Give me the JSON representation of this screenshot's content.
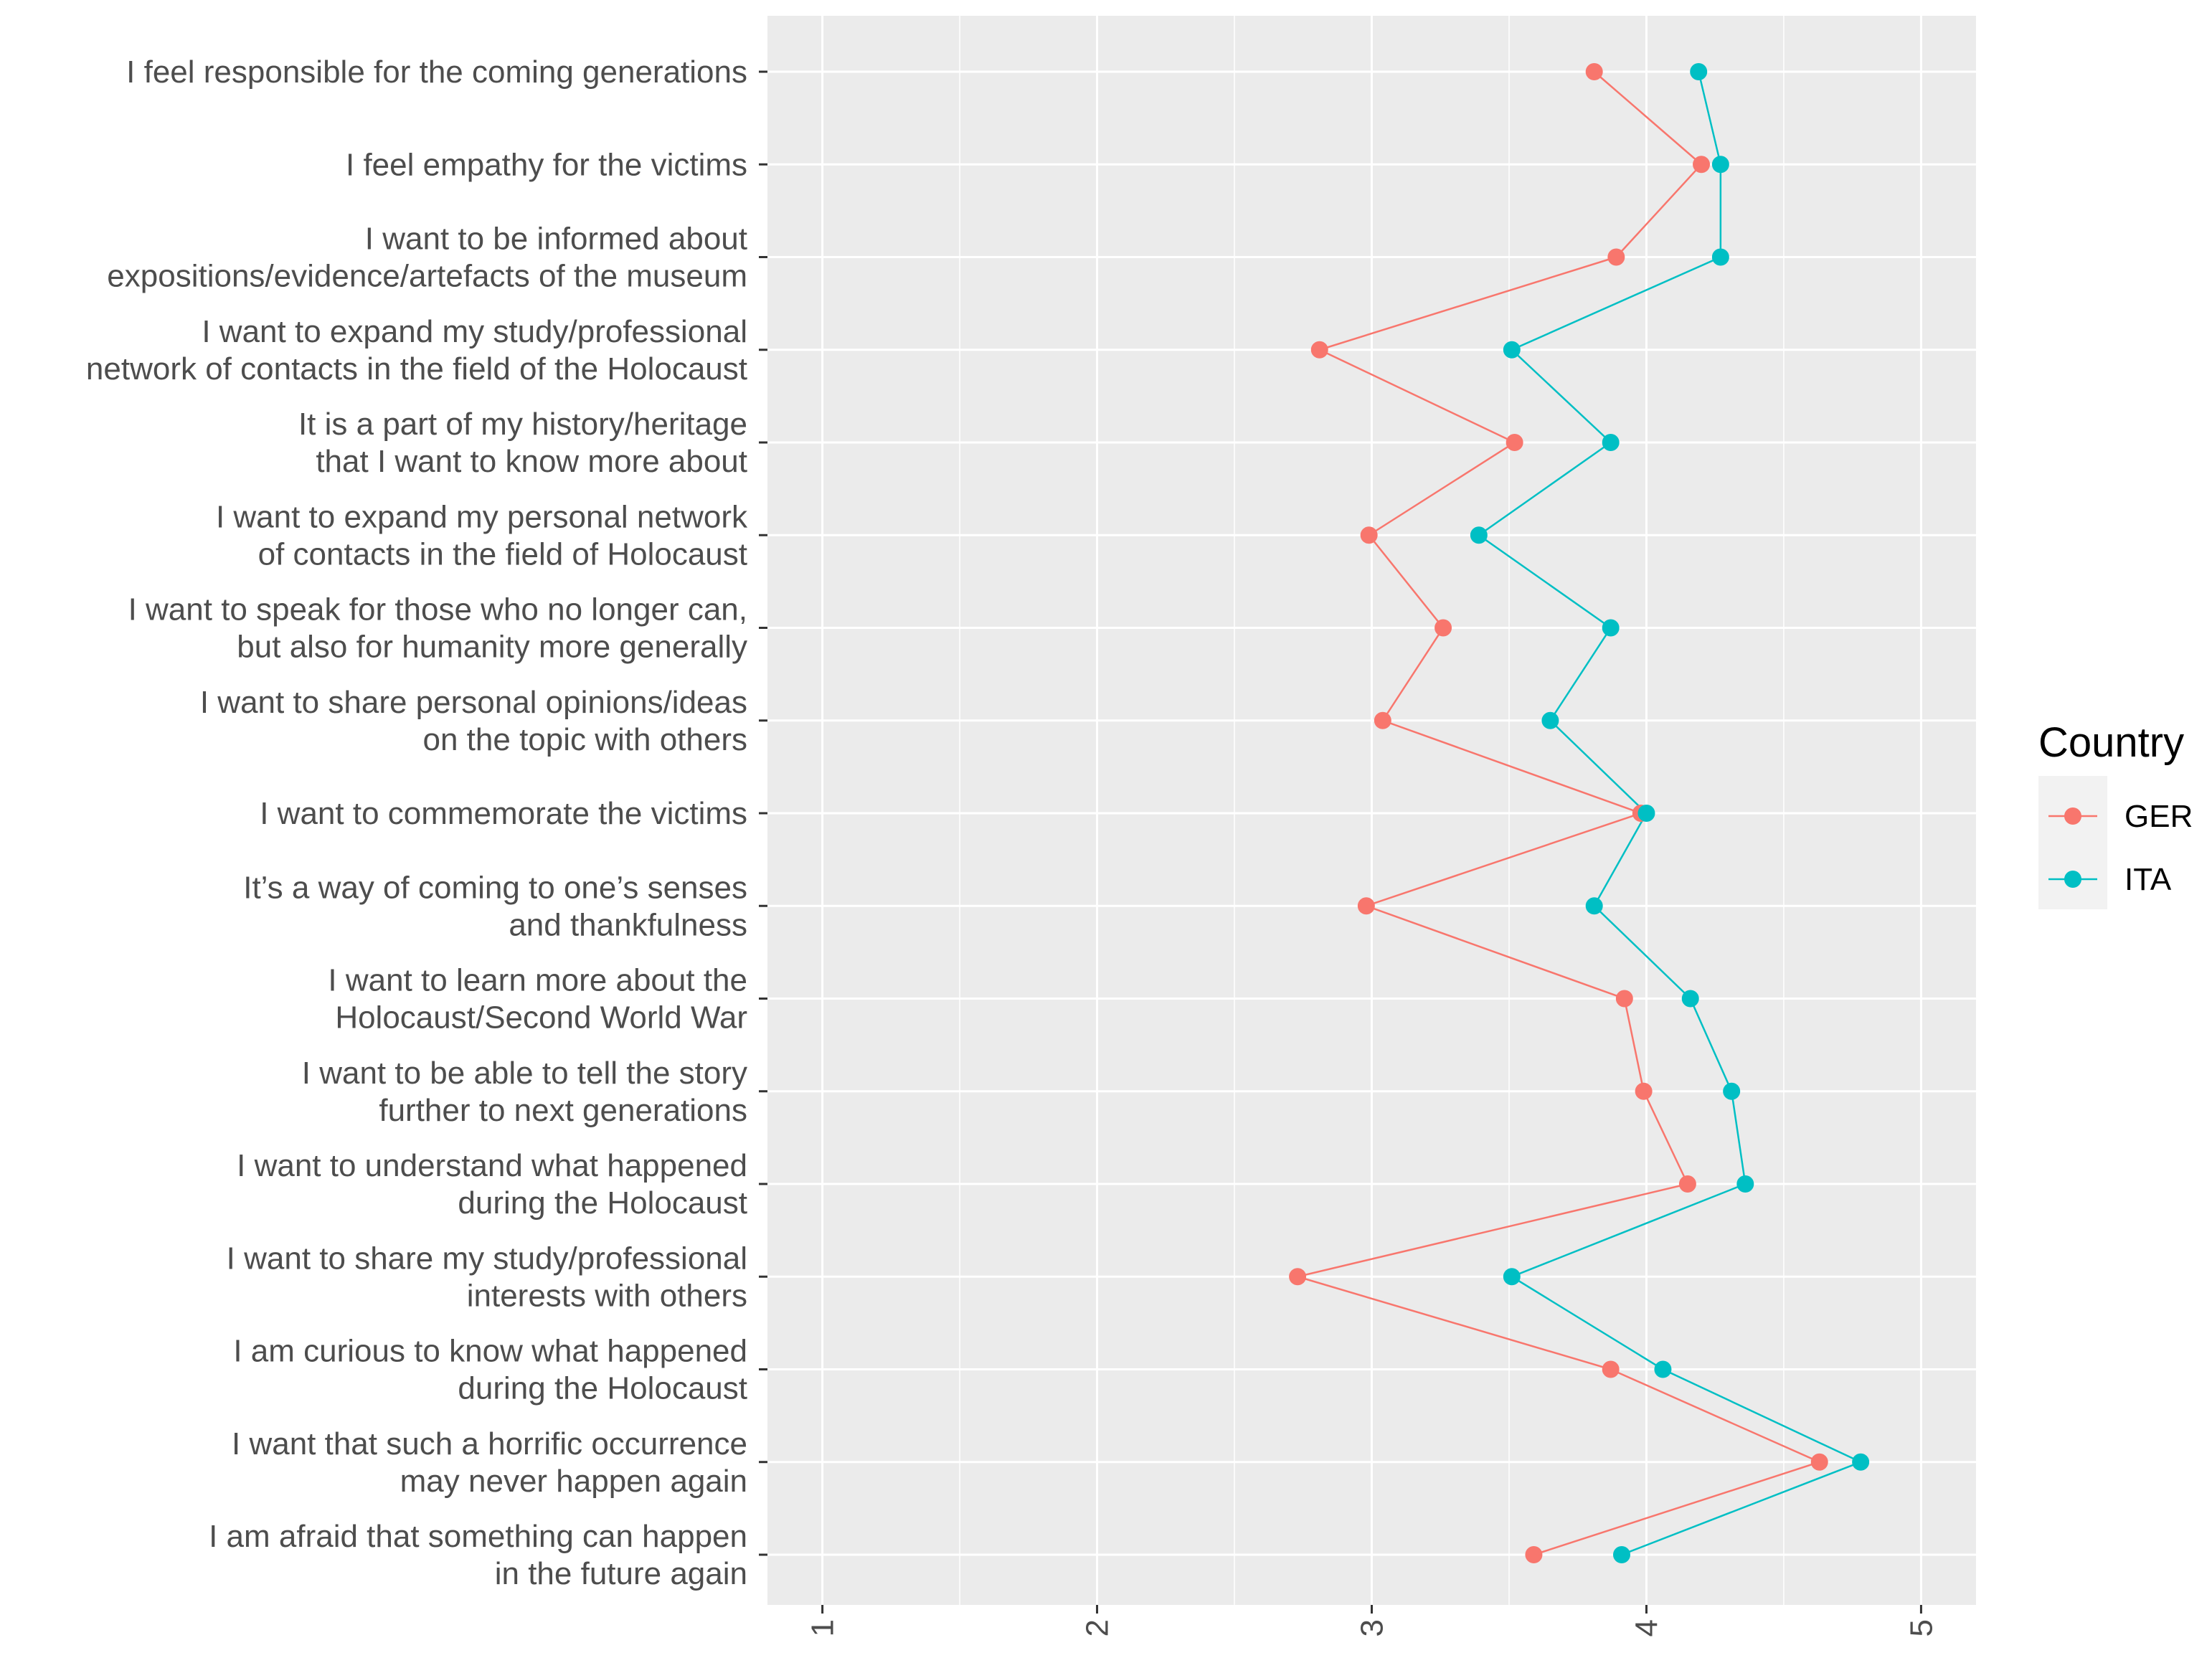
{
  "chart_data": {
    "type": "line",
    "title": "",
    "xlabel": "",
    "ylabel": "",
    "xlim": [
      0.8,
      5.2
    ],
    "x_ticks": [
      "1",
      "2",
      "3",
      "4",
      "5"
    ],
    "grid": true,
    "legend_position": "right",
    "legend_title": "Country",
    "categories": [
      [
        "I feel responsible for the coming generations"
      ],
      [
        "I feel empathy for the victims"
      ],
      [
        "I want to be informed about",
        "expositions/evidence/artefacts of the museum"
      ],
      [
        "I want to expand my study/professional",
        "network of contacts in the field of the Holocaust"
      ],
      [
        "It is a part of my history/heritage",
        "that I want to know more about"
      ],
      [
        "I want to expand my personal network",
        "of contacts in the field of Holocaust"
      ],
      [
        "I want to speak for those who no longer can,",
        "but also for humanity more generally"
      ],
      [
        "I want to share personal opinions/ideas",
        "on the topic with others"
      ],
      [
        "I want to commemorate the victims"
      ],
      [
        "It’s a way of coming to one’s senses",
        "and thankfulness"
      ],
      [
        "I want to learn more about the",
        "Holocaust/Second World War"
      ],
      [
        "I want to be able to tell the story",
        "further to next generations"
      ],
      [
        "I want to understand what happened",
        "during the Holocaust"
      ],
      [
        "I want to share my study/professional",
        "interests with others"
      ],
      [
        "I am curious to know what happened",
        "during the Holocaust"
      ],
      [
        "I want that such a horrific occurrence",
        "may never happen again"
      ],
      [
        "I am afraid that something can happen",
        "in the future again"
      ]
    ],
    "series": [
      {
        "name": "GER",
        "color": "#F8766D",
        "values": [
          3.81,
          4.2,
          3.89,
          2.81,
          3.52,
          2.99,
          3.26,
          3.04,
          3.98,
          2.98,
          3.92,
          3.99,
          4.15,
          2.73,
          3.87,
          4.63,
          3.59
        ]
      },
      {
        "name": "ITA",
        "color": "#00BFC4",
        "values": [
          4.19,
          4.27,
          4.27,
          3.51,
          3.87,
          3.39,
          3.87,
          3.65,
          4.0,
          3.81,
          4.16,
          4.31,
          4.36,
          3.51,
          4.06,
          4.78,
          3.91
        ]
      }
    ]
  }
}
